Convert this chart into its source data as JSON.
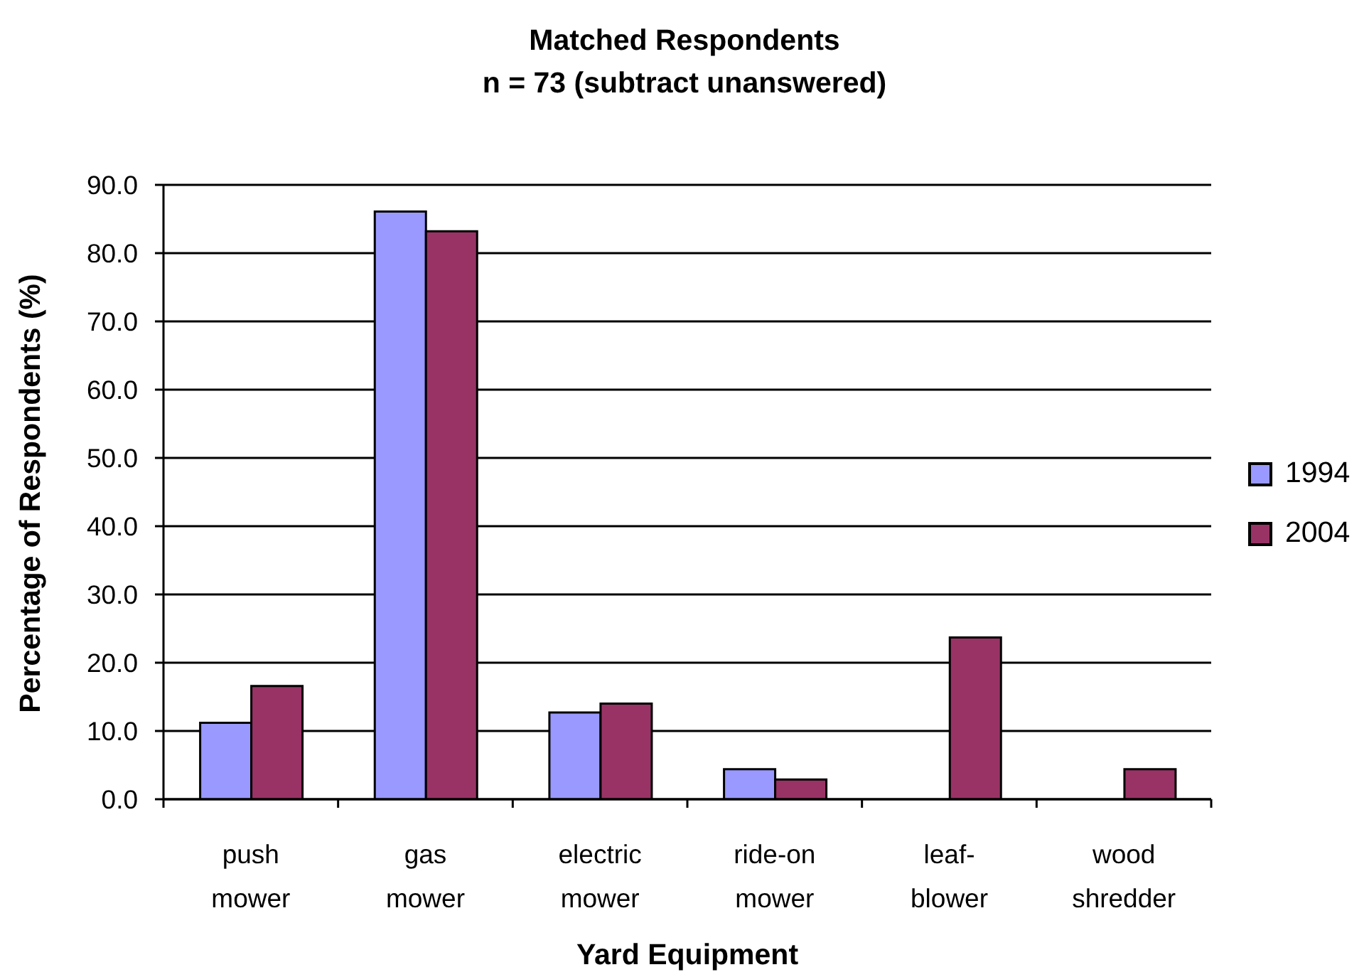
{
  "chart_data": {
    "type": "bar",
    "title": "Matched Respondents",
    "subtitle": "n = 73 (subtract unanswered)",
    "xlabel": "Yard Equipment",
    "ylabel": "Percentage of Respondents (%)",
    "categories": [
      "push mower",
      "gas mower",
      "electric mower",
      "ride-on mower",
      "leaf-blower",
      "wood shredder"
    ],
    "series": [
      {
        "name": "1994",
        "color": "#9999ff",
        "values": [
          11.2,
          86.1,
          12.7,
          4.4,
          0,
          0
        ]
      },
      {
        "name": "2004",
        "color": "#993366",
        "values": [
          16.6,
          83.2,
          14.0,
          2.9,
          23.7,
          4.4
        ]
      }
    ],
    "ylim": [
      0,
      90
    ],
    "yticks": [
      {
        "value": 0,
        "label": "0.0"
      },
      {
        "value": 10,
        "label": "10.0"
      },
      {
        "value": 20,
        "label": "20.0"
      },
      {
        "value": 30,
        "label": "30.0"
      },
      {
        "value": 40,
        "label": "40.0"
      },
      {
        "value": 50,
        "label": "50.0"
      },
      {
        "value": 60,
        "label": "60.0"
      },
      {
        "value": 70,
        "label": "70.0"
      },
      {
        "value": 80,
        "label": "80.0"
      },
      {
        "value": 90,
        "label": "90.0"
      }
    ],
    "grid": "y",
    "legend": "right"
  }
}
